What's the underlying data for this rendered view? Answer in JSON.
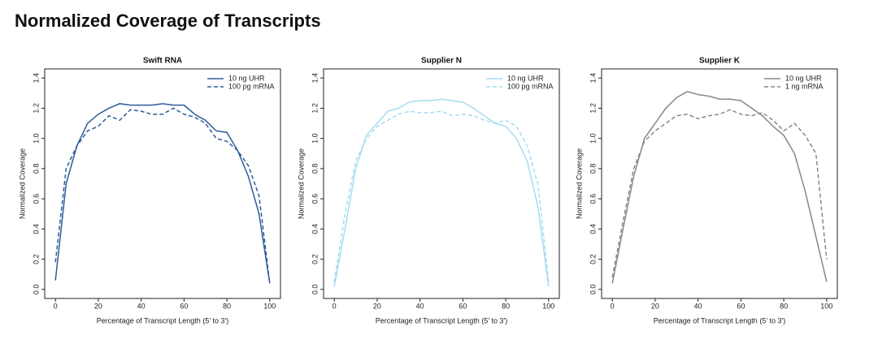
{
  "title": "Normalized Coverage of Transcripts",
  "chart_data": [
    {
      "type": "line",
      "title": "Swift RNA",
      "xlabel": "Percentage of Transcript Length (5' to 3')",
      "ylabel": "Normalized Coverage",
      "x": [
        0,
        5,
        10,
        15,
        20,
        25,
        30,
        35,
        40,
        45,
        50,
        55,
        60,
        65,
        70,
        75,
        80,
        85,
        90,
        95,
        100
      ],
      "series": [
        {
          "name": "10 ng UHR",
          "color": "#2e5c99",
          "linestyle": "solid",
          "values": [
            0.06,
            0.7,
            0.95,
            1.1,
            1.16,
            1.2,
            1.23,
            1.22,
            1.22,
            1.22,
            1.23,
            1.22,
            1.22,
            1.16,
            1.12,
            1.05,
            1.04,
            0.92,
            0.75,
            0.5,
            0.04
          ]
        },
        {
          "name": "100 pg mRNA",
          "color": "#2e5c99",
          "linestyle": "dashed",
          "values": [
            0.18,
            0.8,
            0.95,
            1.05,
            1.08,
            1.15,
            1.12,
            1.19,
            1.18,
            1.16,
            1.16,
            1.2,
            1.16,
            1.14,
            1.1,
            1.0,
            0.98,
            0.92,
            0.82,
            0.62,
            0.04
          ]
        }
      ],
      "xlim": [
        -5,
        105
      ],
      "xticks": [
        0,
        20,
        40,
        60,
        80,
        100
      ],
      "ylim": [
        -0.06,
        1.46
      ],
      "yticks": [
        {
          "value": 0,
          "label": "0.0"
        },
        0.2,
        0.4,
        0.6,
        0.8,
        {
          "value": 1,
          "label": "1.0"
        },
        1.2,
        1.4
      ],
      "legend": "upper right"
    },
    {
      "type": "line",
      "title": "Supplier N",
      "xlabel": "Percentage of Transcript Length (5' to 3')",
      "ylabel": "Normalized Coverage",
      "x": [
        0,
        5,
        10,
        15,
        20,
        25,
        30,
        35,
        40,
        45,
        50,
        55,
        60,
        65,
        70,
        75,
        80,
        85,
        90,
        95,
        100
      ],
      "series": [
        {
          "name": "10 ng UHR",
          "color": "#a6dcf0",
          "linestyle": "solid",
          "values": [
            0.02,
            0.4,
            0.8,
            1.02,
            1.1,
            1.18,
            1.2,
            1.24,
            1.25,
            1.25,
            1.26,
            1.25,
            1.24,
            1.2,
            1.15,
            1.1,
            1.08,
            1.0,
            0.85,
            0.55,
            0.02
          ]
        },
        {
          "name": "100 pg mRNA",
          "color": "#a6dcf0",
          "linestyle": "dashed",
          "values": [
            0.05,
            0.5,
            0.85,
            1.0,
            1.08,
            1.12,
            1.16,
            1.18,
            1.17,
            1.17,
            1.18,
            1.15,
            1.16,
            1.15,
            1.12,
            1.1,
            1.12,
            1.08,
            0.95,
            0.7,
            0.05
          ]
        }
      ],
      "xlim": [
        -5,
        105
      ],
      "xticks": [
        0,
        20,
        40,
        60,
        80,
        100
      ],
      "ylim": [
        -0.06,
        1.46
      ],
      "yticks": [
        {
          "value": 0,
          "label": "0.0"
        },
        0.2,
        0.4,
        0.6,
        0.8,
        {
          "value": 1,
          "label": "1.0"
        },
        1.2,
        1.4
      ],
      "legend": "upper right"
    },
    {
      "type": "line",
      "title": "Supplier K",
      "xlabel": "Percentage of Transcript Length (5' to 3')",
      "ylabel": "Normalized Coverage",
      "x": [
        0,
        5,
        10,
        15,
        20,
        25,
        30,
        35,
        40,
        45,
        50,
        55,
        60,
        65,
        70,
        75,
        80,
        85,
        90,
        95,
        100
      ],
      "series": [
        {
          "name": "10 ng UHR",
          "color": "#888888",
          "linestyle": "solid",
          "values": [
            0.04,
            0.4,
            0.75,
            1.0,
            1.1,
            1.2,
            1.27,
            1.31,
            1.29,
            1.28,
            1.26,
            1.26,
            1.25,
            1.2,
            1.15,
            1.08,
            1.02,
            0.9,
            0.65,
            0.35,
            0.05
          ]
        },
        {
          "name": "1 ng mRNA",
          "color": "#888888",
          "linestyle": "dashed",
          "values": [
            0.08,
            0.45,
            0.8,
            0.98,
            1.05,
            1.1,
            1.15,
            1.16,
            1.13,
            1.15,
            1.16,
            1.19,
            1.16,
            1.15,
            1.17,
            1.12,
            1.05,
            1.1,
            1.02,
            0.9,
            0.2
          ]
        }
      ],
      "xlim": [
        -5,
        105
      ],
      "xticks": [
        0,
        20,
        40,
        60,
        80,
        100
      ],
      "ylim": [
        -0.06,
        1.46
      ],
      "yticks": [
        {
          "value": 0,
          "label": "0.0"
        },
        0.2,
        0.4,
        0.6,
        0.8,
        {
          "value": 1,
          "label": "1.0"
        },
        1.2,
        1.4
      ],
      "legend": "upper right"
    }
  ]
}
